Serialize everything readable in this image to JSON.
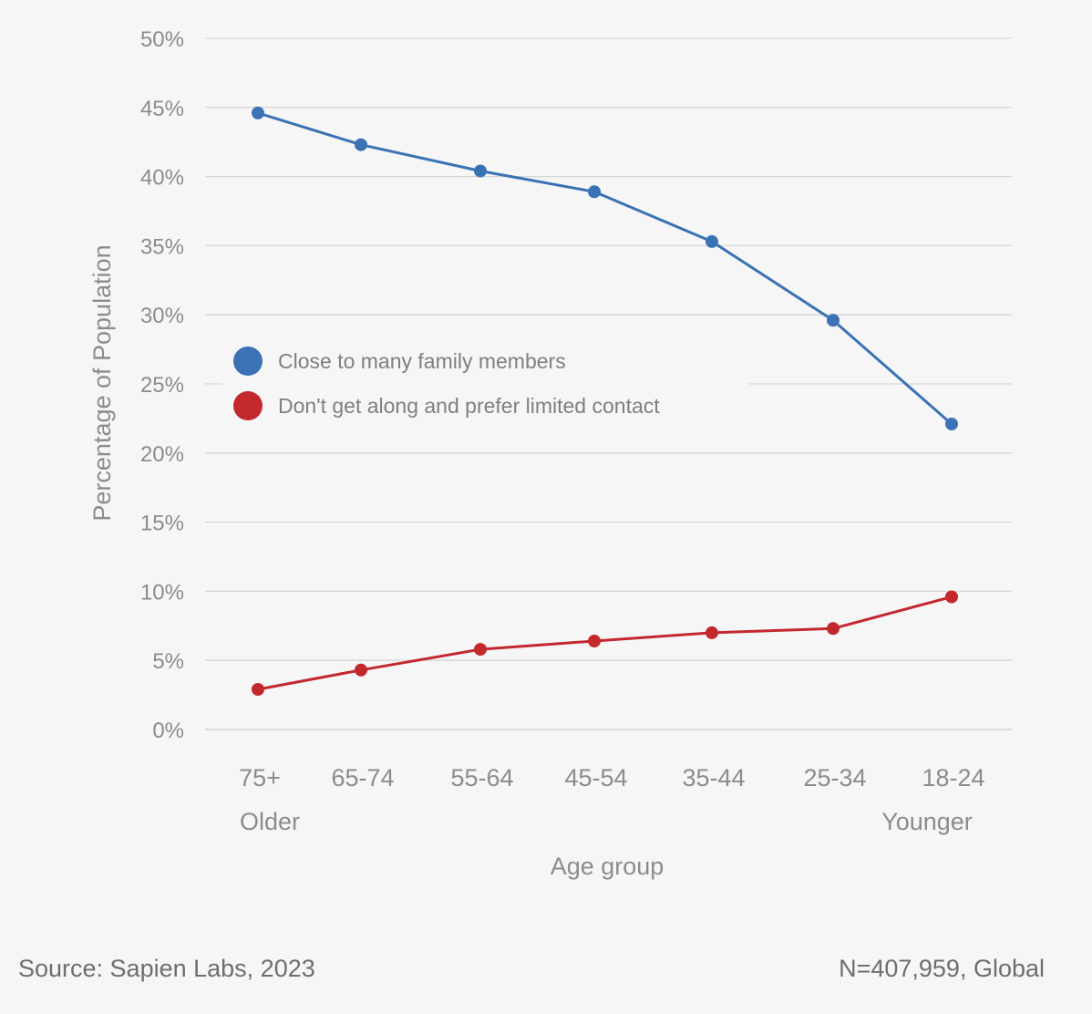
{
  "chart_data": {
    "type": "line",
    "categories": [
      "75+",
      "65-74",
      "55-64",
      "45-54",
      "35-44",
      "25-34",
      "18-24"
    ],
    "category_notes": {
      "first": "Older",
      "last": "Younger"
    },
    "series": [
      {
        "name": "Close to many family members",
        "color": "#3a72b5",
        "values": [
          44.6,
          42.3,
          40.4,
          38.9,
          35.3,
          29.6,
          22.1
        ]
      },
      {
        "name": "Don't get along and prefer limited contact",
        "color": "#c3282d",
        "values": [
          2.9,
          4.3,
          5.8,
          6.4,
          7.0,
          7.3,
          9.6
        ]
      }
    ],
    "y_ticks": [
      "0%",
      "5%",
      "10%",
      "15%",
      "20%",
      "25%",
      "30%",
      "35%",
      "40%",
      "45%",
      "50%"
    ],
    "ylim": [
      0,
      50
    ],
    "xlabel": "Age group",
    "ylabel": "Percentage of Population",
    "grid": true,
    "legend_position": "center-left"
  },
  "footer": {
    "source": "Source: Sapien Labs, 2023",
    "sample": "N=407,959, Global"
  }
}
